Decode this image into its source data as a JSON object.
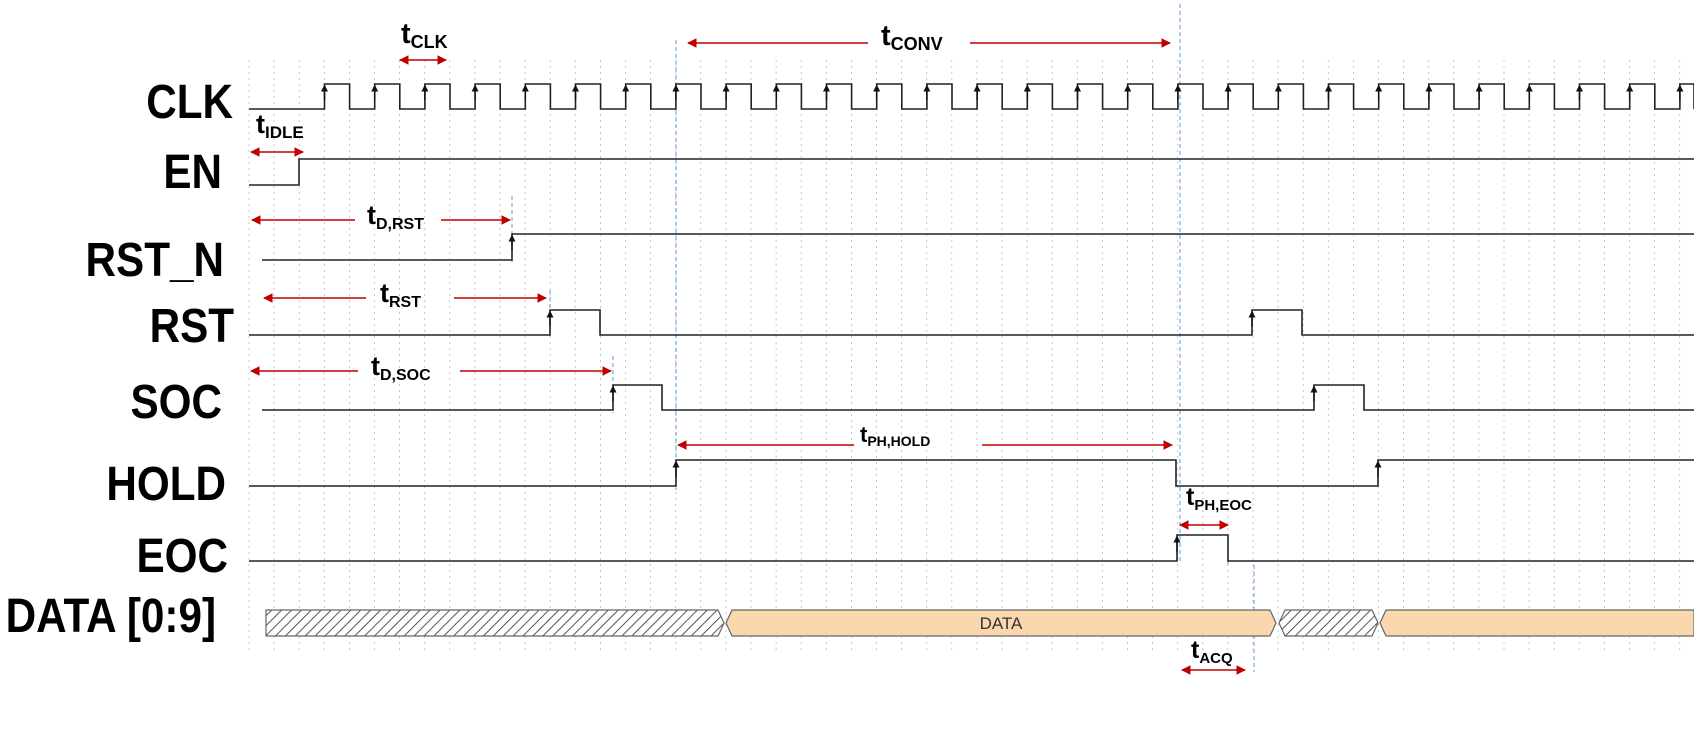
{
  "signals": [
    {
      "id": "clk",
      "label": "CLK"
    },
    {
      "id": "en",
      "label": "EN"
    },
    {
      "id": "rst_n",
      "label": "RST_N"
    },
    {
      "id": "rst",
      "label": "RST"
    },
    {
      "id": "soc",
      "label": "SOC"
    },
    {
      "id": "hold",
      "label": "HOLD"
    },
    {
      "id": "eoc",
      "label": "EOC"
    },
    {
      "id": "data",
      "label": "DATA [0:9]"
    }
  ],
  "data_bus_label": "DATA",
  "timing_params": [
    {
      "id": "t_clk",
      "main": "t",
      "sub": "CLK"
    },
    {
      "id": "t_conv",
      "main": "t",
      "sub": "CONV"
    },
    {
      "id": "t_idle",
      "main": "t",
      "sub": "IDLE"
    },
    {
      "id": "t_d_rst",
      "main": "t",
      "sub": "D,RST"
    },
    {
      "id": "t_rst",
      "main": "t",
      "sub": "RST"
    },
    {
      "id": "t_d_soc",
      "main": "t",
      "sub": "D,SOC"
    },
    {
      "id": "t_ph_hold",
      "main": "t",
      "sub": "PH,HOLD"
    },
    {
      "id": "t_ph_eoc",
      "main": "t",
      "sub": "PH,EOC"
    },
    {
      "id": "t_acq",
      "main": "t",
      "sub": "ACQ"
    }
  ],
  "colors": {
    "trace": "#222222",
    "arrow": "#c00000",
    "guide": "#5b9bd5",
    "grid": "#bbbbbb",
    "bus_fill": "#fad7ac",
    "bus_stroke": "#666666"
  }
}
